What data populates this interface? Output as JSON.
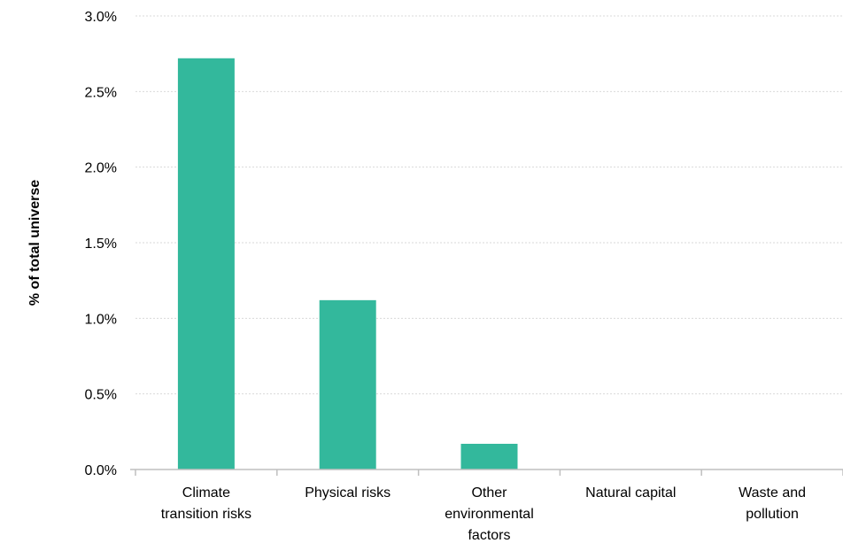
{
  "chart_data": {
    "type": "bar",
    "title": "",
    "xlabel": "",
    "ylabel": "% of total universe",
    "categories": [
      [
        "Climate",
        "transition risks"
      ],
      [
        "Physical risks"
      ],
      [
        "Other",
        "environmental",
        "factors"
      ],
      [
        "Natural capital"
      ],
      [
        "Waste and",
        "pollution"
      ]
    ],
    "values": [
      2.72,
      1.12,
      0.17,
      0.0,
      0.0
    ],
    "ylim": [
      0,
      3.0
    ],
    "yticks": [
      {
        "value": 0.0,
        "label": "0.0%"
      },
      {
        "value": 0.5,
        "label": "0.5%"
      },
      {
        "value": 1.0,
        "label": "1.0%"
      },
      {
        "value": 1.5,
        "label": "1.5%"
      },
      {
        "value": 2.0,
        "label": "2.0%"
      },
      {
        "value": 2.5,
        "label": "2.5%"
      },
      {
        "value": 3.0,
        "label": "3.0%"
      }
    ],
    "grid": true,
    "legend": "none",
    "colors": {
      "bar": "#33b89c",
      "grid": "#d9d9d9",
      "axis": "#bfbfbf"
    }
  }
}
